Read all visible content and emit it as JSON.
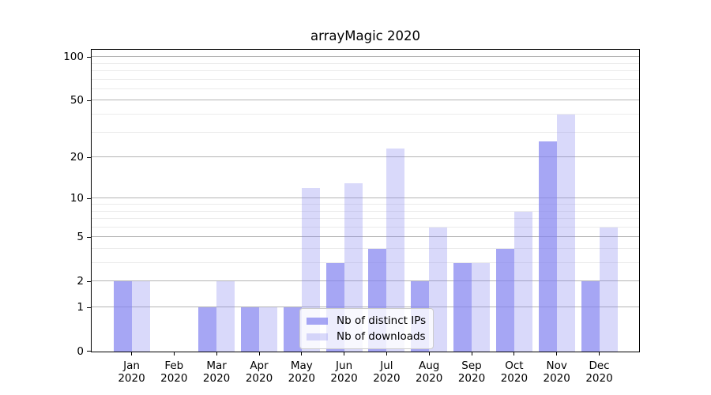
{
  "title": "arrayMagic 2020",
  "legend": {
    "entries": [
      {
        "label": "Nb of distinct IPs",
        "series": "ips"
      },
      {
        "label": "Nb of downloads",
        "series": "downloads"
      }
    ]
  },
  "colors": {
    "bar_base": "#8080F0",
    "bar_ips": "rgba(128,128,240,0.7)",
    "bar_downloads": "rgba(128,128,240,0.3)",
    "grid_major": "#b4b4b4",
    "grid_minor": "#ebebeb",
    "axis": "#000000",
    "legend_border": "#cccccc"
  },
  "chart_data": {
    "type": "bar",
    "title": "arrayMagic 2020",
    "categories": [
      "Jan",
      "Feb",
      "Mar",
      "Apr",
      "May",
      "Jun",
      "Jul",
      "Aug",
      "Sep",
      "Oct",
      "Nov",
      "Dec"
    ],
    "year_label": "2020",
    "series": [
      {
        "name": "Nb of distinct IPs",
        "key": "ips",
        "values": [
          2,
          0,
          1,
          1,
          1,
          3,
          4,
          2,
          3,
          4,
          26,
          2
        ]
      },
      {
        "name": "Nb of downloads",
        "key": "downloads",
        "values": [
          2,
          0,
          2,
          1,
          12,
          13,
          23,
          6,
          3,
          8,
          40,
          6
        ]
      }
    ],
    "yscale": "log1p",
    "ylim": [
      0,
      111
    ],
    "yticks": [
      0,
      1,
      2,
      5,
      10,
      20,
      50,
      100
    ],
    "yticks_minor": [
      3,
      4,
      6,
      7,
      8,
      9,
      30,
      40,
      60,
      70,
      80,
      90
    ],
    "grid": "horizontal",
    "xlabel": "",
    "ylabel": "",
    "legend_position": "lower-center-inside"
  }
}
